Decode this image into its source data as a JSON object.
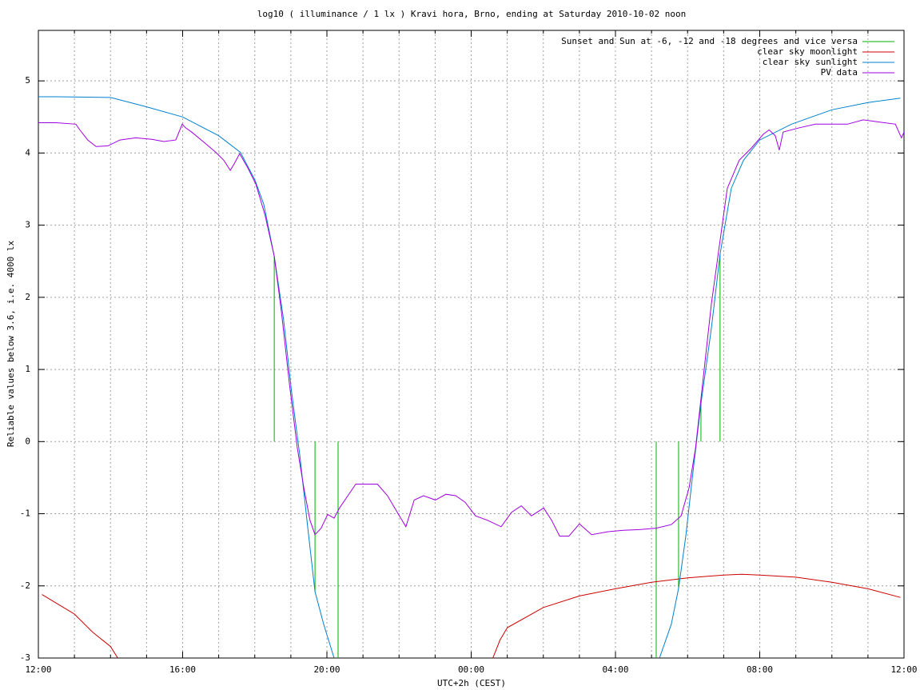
{
  "chart_data": {
    "type": "line",
    "title": "log10 ( illuminance / 1 lx ) Kravi hora, Brno, ending at Saturday 2010-10-02 noon",
    "x_label": "UTC+2h (CEST)",
    "y_label": "Reliable values below 3.6, i.e. 4000 lx",
    "xlim": [
      0,
      24
    ],
    "xticks": [
      {
        "value": 0,
        "label": "12:00"
      },
      {
        "value": 4,
        "label": "16:00"
      },
      {
        "value": 8,
        "label": "20:00"
      },
      {
        "value": 12,
        "label": "00:00"
      },
      {
        "value": 16,
        "label": "04:00"
      },
      {
        "value": 20,
        "label": "08:00"
      },
      {
        "value": 24,
        "label": "12:00"
      }
    ],
    "xminorticks": [
      1,
      2,
      3,
      5,
      6,
      7,
      9,
      10,
      11,
      13,
      14,
      15,
      17,
      18,
      19,
      21,
      22,
      23
    ],
    "ylim": [
      -3,
      5.7
    ],
    "yticks": [
      -3,
      -2,
      -1,
      0,
      1,
      2,
      3,
      4,
      5
    ],
    "grid": true,
    "legend": "top-right",
    "series": [
      {
        "name": "Sunset and Sun at -6, -12 and -18 degrees and vice versa",
        "color": "#00b000",
        "style": "impulses",
        "x": [
          6.54,
          7.67,
          8.31,
          17.13,
          17.75,
          18.37,
          18.9
        ],
        "values": [
          2.57,
          -2.08,
          -3,
          -3,
          -2.03,
          0.52,
          2.6
        ]
      },
      {
        "name": "clear sky moonlight",
        "color": "#cc0000",
        "style": "lines",
        "x": [
          0.1,
          1,
          1.5,
          2,
          2.2,
          7,
          12.6,
          12.8,
          13,
          14,
          15,
          16,
          17,
          18,
          19,
          19.5,
          20,
          21,
          22,
          23,
          23.9
        ],
        "values": [
          -2.12,
          -2.39,
          -2.64,
          -2.84,
          -3,
          null,
          -3,
          -2.75,
          -2.58,
          -2.3,
          -2.14,
          -2.04,
          -1.95,
          -1.89,
          -1.85,
          -1.84,
          -1.85,
          -1.88,
          -1.95,
          -2.04,
          -2.16
        ]
      },
      {
        "name": "clear sky sunlight",
        "color": "#0080d0",
        "style": "lines",
        "x": [
          0,
          0.5,
          2,
          3,
          4,
          5,
          5.6,
          6,
          6.25,
          6.54,
          6.8,
          7.02,
          7.25,
          7.47,
          7.67,
          7.91,
          8.2,
          12,
          17.22,
          17.55,
          17.75,
          17.95,
          18.15,
          18.37,
          18.66,
          18.9,
          19.21,
          19.55,
          20,
          20.88,
          22,
          23,
          23.9
        ],
        "values": [
          4.78,
          4.78,
          4.77,
          4.64,
          4.5,
          4.24,
          4.01,
          3.63,
          3.29,
          2.57,
          1.69,
          0.69,
          -0.2,
          -1.2,
          -2.08,
          -2.53,
          -3,
          null,
          -3,
          -2.53,
          -2.03,
          -1.31,
          -0.42,
          0.52,
          1.57,
          2.6,
          3.51,
          3.9,
          4.18,
          4.4,
          4.6,
          4.7,
          4.76
        ]
      },
      {
        "name": "PV data",
        "color": "#a000e0",
        "style": "lines",
        "x": [
          0,
          0.49,
          1.04,
          1.15,
          1.37,
          1.6,
          1.93,
          2.26,
          2.7,
          3.15,
          3.48,
          3.81,
          3.99,
          4.08,
          4.25,
          4.59,
          4.92,
          5.14,
          5.32,
          5.43,
          5.58,
          5.81,
          6.03,
          6.29,
          6.54,
          6.74,
          6.96,
          7.18,
          7.36,
          7.53,
          7.67,
          7.84,
          8.02,
          8.2,
          8.35,
          8.58,
          8.8,
          9.13,
          9.4,
          9.68,
          9.95,
          10.19,
          10.42,
          10.68,
          11.01,
          11.3,
          11.57,
          11.83,
          12.12,
          12.45,
          12.83,
          13.12,
          13.39,
          13.67,
          14.01,
          14.23,
          14.45,
          14.71,
          15,
          15.34,
          15.78,
          16.22,
          16.67,
          17.13,
          17.55,
          17.82,
          18.04,
          18.22,
          18.44,
          18.66,
          18.9,
          19.1,
          19.43,
          19.77,
          20.1,
          20.26,
          20.43,
          20.54,
          20.65,
          21.1,
          21.54,
          21.98,
          22.43,
          22.87,
          23.31,
          23.76,
          23.93,
          24
        ],
        "values": [
          4.42,
          4.42,
          4.4,
          4.32,
          4.18,
          4.09,
          4.1,
          4.18,
          4.21,
          4.19,
          4.16,
          4.18,
          4.4,
          4.35,
          4.29,
          4.15,
          4.01,
          3.9,
          3.76,
          3.85,
          3.99,
          3.79,
          3.57,
          3.13,
          2.57,
          1.8,
          0.8,
          -0.09,
          -0.64,
          -1.09,
          -1.29,
          -1.2,
          -1.01,
          -1.06,
          -0.92,
          -0.75,
          -0.59,
          -0.59,
          -0.59,
          -0.75,
          -0.98,
          -1.18,
          -0.81,
          -0.75,
          -0.81,
          -0.73,
          -0.75,
          -0.84,
          -1.03,
          -1.09,
          -1.18,
          -0.98,
          -0.89,
          -1.03,
          -0.92,
          -1.09,
          -1.31,
          -1.31,
          -1.14,
          -1.29,
          -1.25,
          -1.23,
          -1.22,
          -1.2,
          -1.15,
          -1.03,
          -0.64,
          -0.09,
          0.91,
          1.91,
          2.79,
          3.51,
          3.9,
          4.07,
          4.26,
          4.32,
          4.24,
          4.04,
          4.29,
          4.35,
          4.4,
          4.4,
          4.4,
          4.46,
          4.43,
          4.4,
          4.21,
          4.29
        ]
      }
    ]
  }
}
